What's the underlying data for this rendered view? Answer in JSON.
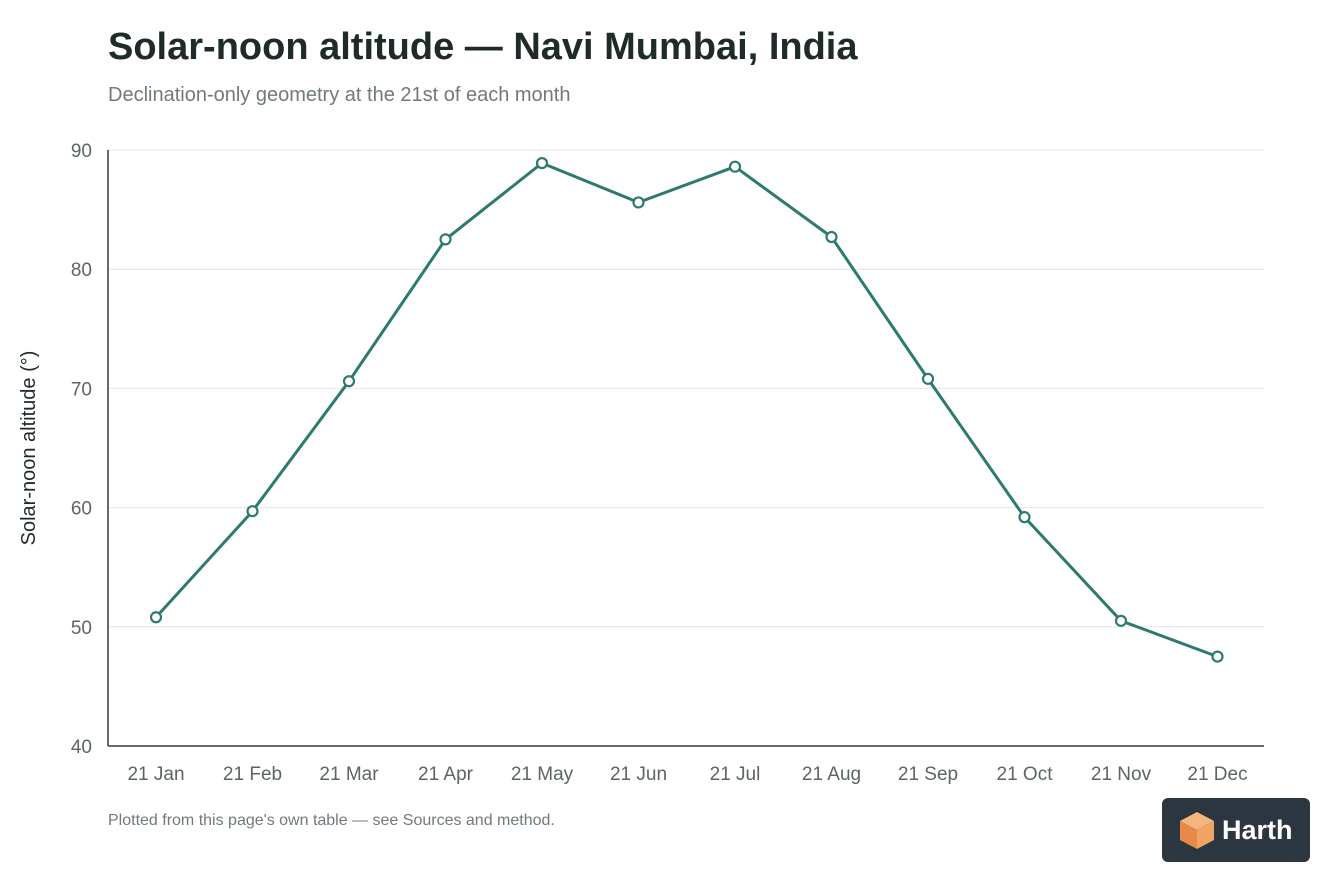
{
  "chart_data": {
    "type": "line",
    "title": "Solar-noon altitude — Navi Mumbai, India",
    "subtitle": "Declination-only geometry at the 21st of each month",
    "xlabel": "",
    "ylabel": "Solar-noon altitude (°)",
    "categories": [
      "21 Jan",
      "21 Feb",
      "21 Mar",
      "21 Apr",
      "21 May",
      "21 Jun",
      "21 Jul",
      "21 Aug",
      "21 Sep",
      "21 Oct",
      "21 Nov",
      "21 Dec"
    ],
    "values": [
      50.8,
      59.7,
      70.6,
      82.5,
      88.9,
      85.6,
      88.6,
      82.7,
      70.8,
      59.2,
      50.5,
      47.5
    ],
    "ylim": [
      40,
      90
    ],
    "yticks": [
      40,
      50,
      60,
      70,
      80,
      90
    ],
    "grid": true,
    "line_color": "#2e7a6f"
  },
  "footnote": "Plotted from this page's own table — see Sources and method.",
  "brand": {
    "name": "Harth",
    "logo_icon": "cube-icon"
  }
}
